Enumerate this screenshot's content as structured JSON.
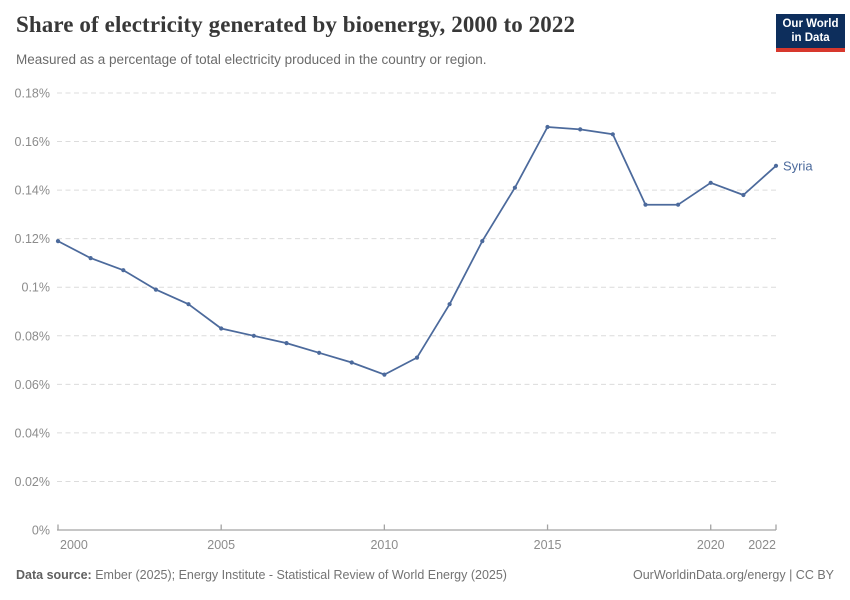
{
  "header": {
    "title": "Share of electricity generated by bioenergy, 2000 to 2022",
    "subtitle": "Measured as a percentage of total electricity produced in the country or region.",
    "logo": {
      "line1": "Our World",
      "line2": "in Data",
      "bg_color": "#0d2e5c",
      "bar_color": "#d7382d"
    }
  },
  "chart_data": {
    "type": "line",
    "title": "Share of electricity generated by bioenergy, 2000 to 2022",
    "xlabel": "",
    "ylabel": "",
    "unit": "%",
    "xlim": [
      2000,
      2022
    ],
    "ylim": [
      0,
      0.18
    ],
    "grid": "horizontal dashed",
    "legend_position": "end-of-line label",
    "x_ticks": [
      2000,
      2005,
      2010,
      2015,
      2020,
      2022
    ],
    "y_ticks": [
      "0%",
      "0.02%",
      "0.04%",
      "0.06%",
      "0.08%",
      "0.1%",
      "0.12%",
      "0.14%",
      "0.16%",
      "0.18%"
    ],
    "y_tick_values": [
      0,
      0.02,
      0.04,
      0.06,
      0.08,
      0.1,
      0.12,
      0.14,
      0.16,
      0.18
    ],
    "series": [
      {
        "name": "Syria",
        "color": "#4c6a9c",
        "x": [
          2000,
          2001,
          2002,
          2003,
          2004,
          2005,
          2006,
          2007,
          2008,
          2009,
          2010,
          2011,
          2012,
          2013,
          2014,
          2015,
          2016,
          2017,
          2018,
          2019,
          2020,
          2021,
          2022
        ],
        "values": [
          0.119,
          0.112,
          0.107,
          0.099,
          0.093,
          0.083,
          0.08,
          0.077,
          0.073,
          0.069,
          0.064,
          0.071,
          0.093,
          0.119,
          0.141,
          0.166,
          0.165,
          0.163,
          0.134,
          0.134,
          0.143,
          0.138,
          0.15
        ]
      }
    ]
  },
  "footer": {
    "source_label": "Data source:",
    "source_text": " Ember (2025); Energy Institute - Statistical Review of World Energy (2025)",
    "credit": "OurWorldinData.org/energy | CC BY"
  }
}
